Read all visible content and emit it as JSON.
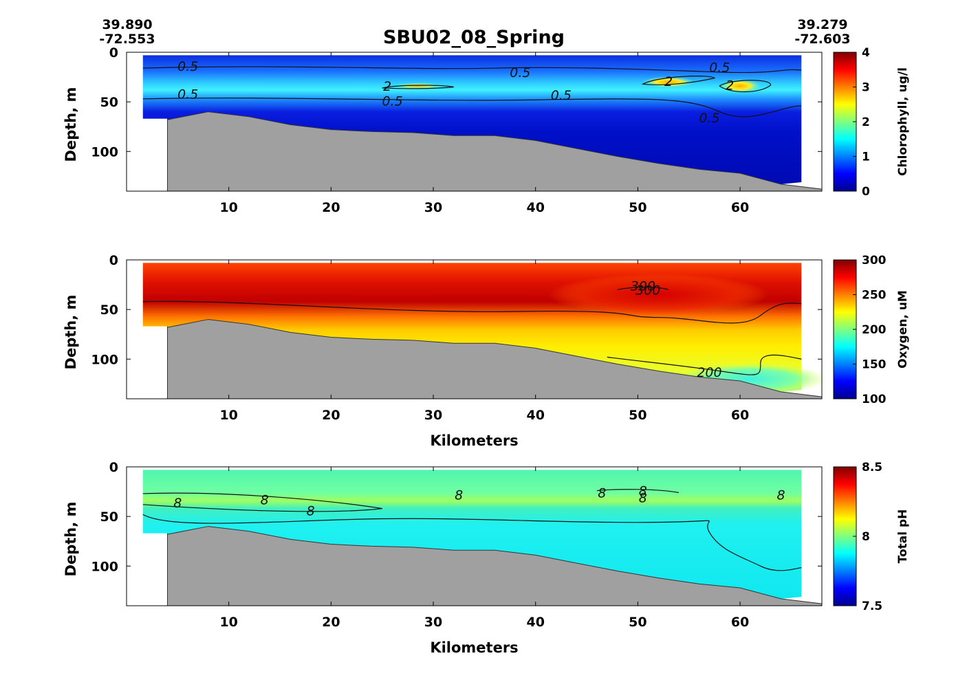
{
  "figure": {
    "title": "SBU02_08_Spring",
    "start_coord": {
      "lat": "39.890",
      "lon": "-72.553"
    },
    "end_coord": {
      "lat": "39.279",
      "lon": "-72.603"
    }
  },
  "chart_data": [
    {
      "type": "heatmap",
      "variable": "chlorophyll",
      "xlabel": "",
      "ylabel": "Depth, m",
      "xlim": [
        0,
        68
      ],
      "ylim": [
        0,
        140
      ],
      "y_reversed": true,
      "xticks": [
        "10",
        "20",
        "30",
        "40",
        "50",
        "60"
      ],
      "yticks": [
        "0",
        "50",
        "100"
      ],
      "colorbar": {
        "label": "Chlorophyll, ug/l",
        "range": [
          0,
          4
        ],
        "ticks": [
          "0",
          "1",
          "2",
          "3",
          "4"
        ],
        "colormap": "jet"
      },
      "contour_labels": [
        {
          "text": "0.5",
          "x": 6,
          "y": 14
        },
        {
          "text": "0.5",
          "x": 6,
          "y": 42
        },
        {
          "text": "2",
          "x": 25.5,
          "y": 34
        },
        {
          "text": "0.5",
          "x": 26,
          "y": 49
        },
        {
          "text": "0.5",
          "x": 38.5,
          "y": 20
        },
        {
          "text": "0.5",
          "x": 42.5,
          "y": 43
        },
        {
          "text": "2",
          "x": 53,
          "y": 29
        },
        {
          "text": "0.5",
          "x": 58,
          "y": 15
        },
        {
          "text": "2",
          "x": 59,
          "y": 33
        },
        {
          "text": "0.5",
          "x": 57,
          "y": 66
        }
      ]
    },
    {
      "type": "heatmap",
      "variable": "oxygen",
      "xlabel": "Kilometers",
      "ylabel": "Depth, m",
      "xlim": [
        0,
        68
      ],
      "ylim": [
        0,
        140
      ],
      "y_reversed": true,
      "xticks": [
        "10",
        "20",
        "30",
        "40",
        "50",
        "60"
      ],
      "yticks": [
        "0",
        "50",
        "100"
      ],
      "colorbar": {
        "label": "Oxygen, uM",
        "range": [
          100,
          300
        ],
        "ticks": [
          "100",
          "150",
          "200",
          "250",
          "300"
        ],
        "colormap": "jet"
      },
      "contour_labels": [
        {
          "text": "300",
          "x": 50.5,
          "y": 26
        },
        {
          "text": "300",
          "x": 51,
          "y": 30
        },
        {
          "text": "200",
          "x": 57,
          "y": 113
        }
      ]
    },
    {
      "type": "heatmap",
      "variable": "ph",
      "xlabel": "Kilometers",
      "ylabel": "Depth, m",
      "xlim": [
        0,
        68
      ],
      "ylim": [
        0,
        140
      ],
      "y_reversed": true,
      "xticks": [
        "10",
        "20",
        "30",
        "40",
        "50",
        "60"
      ],
      "yticks": [
        "0",
        "50",
        "100"
      ],
      "colorbar": {
        "label": "Total pH",
        "range": [
          7.5,
          8.5
        ],
        "ticks": [
          "7.5",
          "8",
          "8.5"
        ],
        "colormap": "jet"
      },
      "contour_labels": [
        {
          "text": "8",
          "x": 5,
          "y": 36
        },
        {
          "text": "8",
          "x": 13.5,
          "y": 33
        },
        {
          "text": "8",
          "x": 18,
          "y": 44
        },
        {
          "text": "8",
          "x": 32.5,
          "y": 28
        },
        {
          "text": "8",
          "x": 46.5,
          "y": 26
        },
        {
          "text": "8",
          "x": 50.5,
          "y": 24
        },
        {
          "text": "8",
          "x": 50.5,
          "y": 31
        },
        {
          "text": "8",
          "x": 64,
          "y": 28
        }
      ]
    }
  ],
  "bathymetry": {
    "x": [
      4,
      8,
      12,
      16,
      20,
      24,
      28,
      32,
      36,
      40,
      44,
      48,
      52,
      56,
      60,
      64,
      68
    ],
    "depth": [
      68,
      60,
      65,
      73,
      78,
      80,
      81,
      84,
      84,
      89,
      97,
      105,
      112,
      118,
      122,
      133,
      138
    ]
  }
}
